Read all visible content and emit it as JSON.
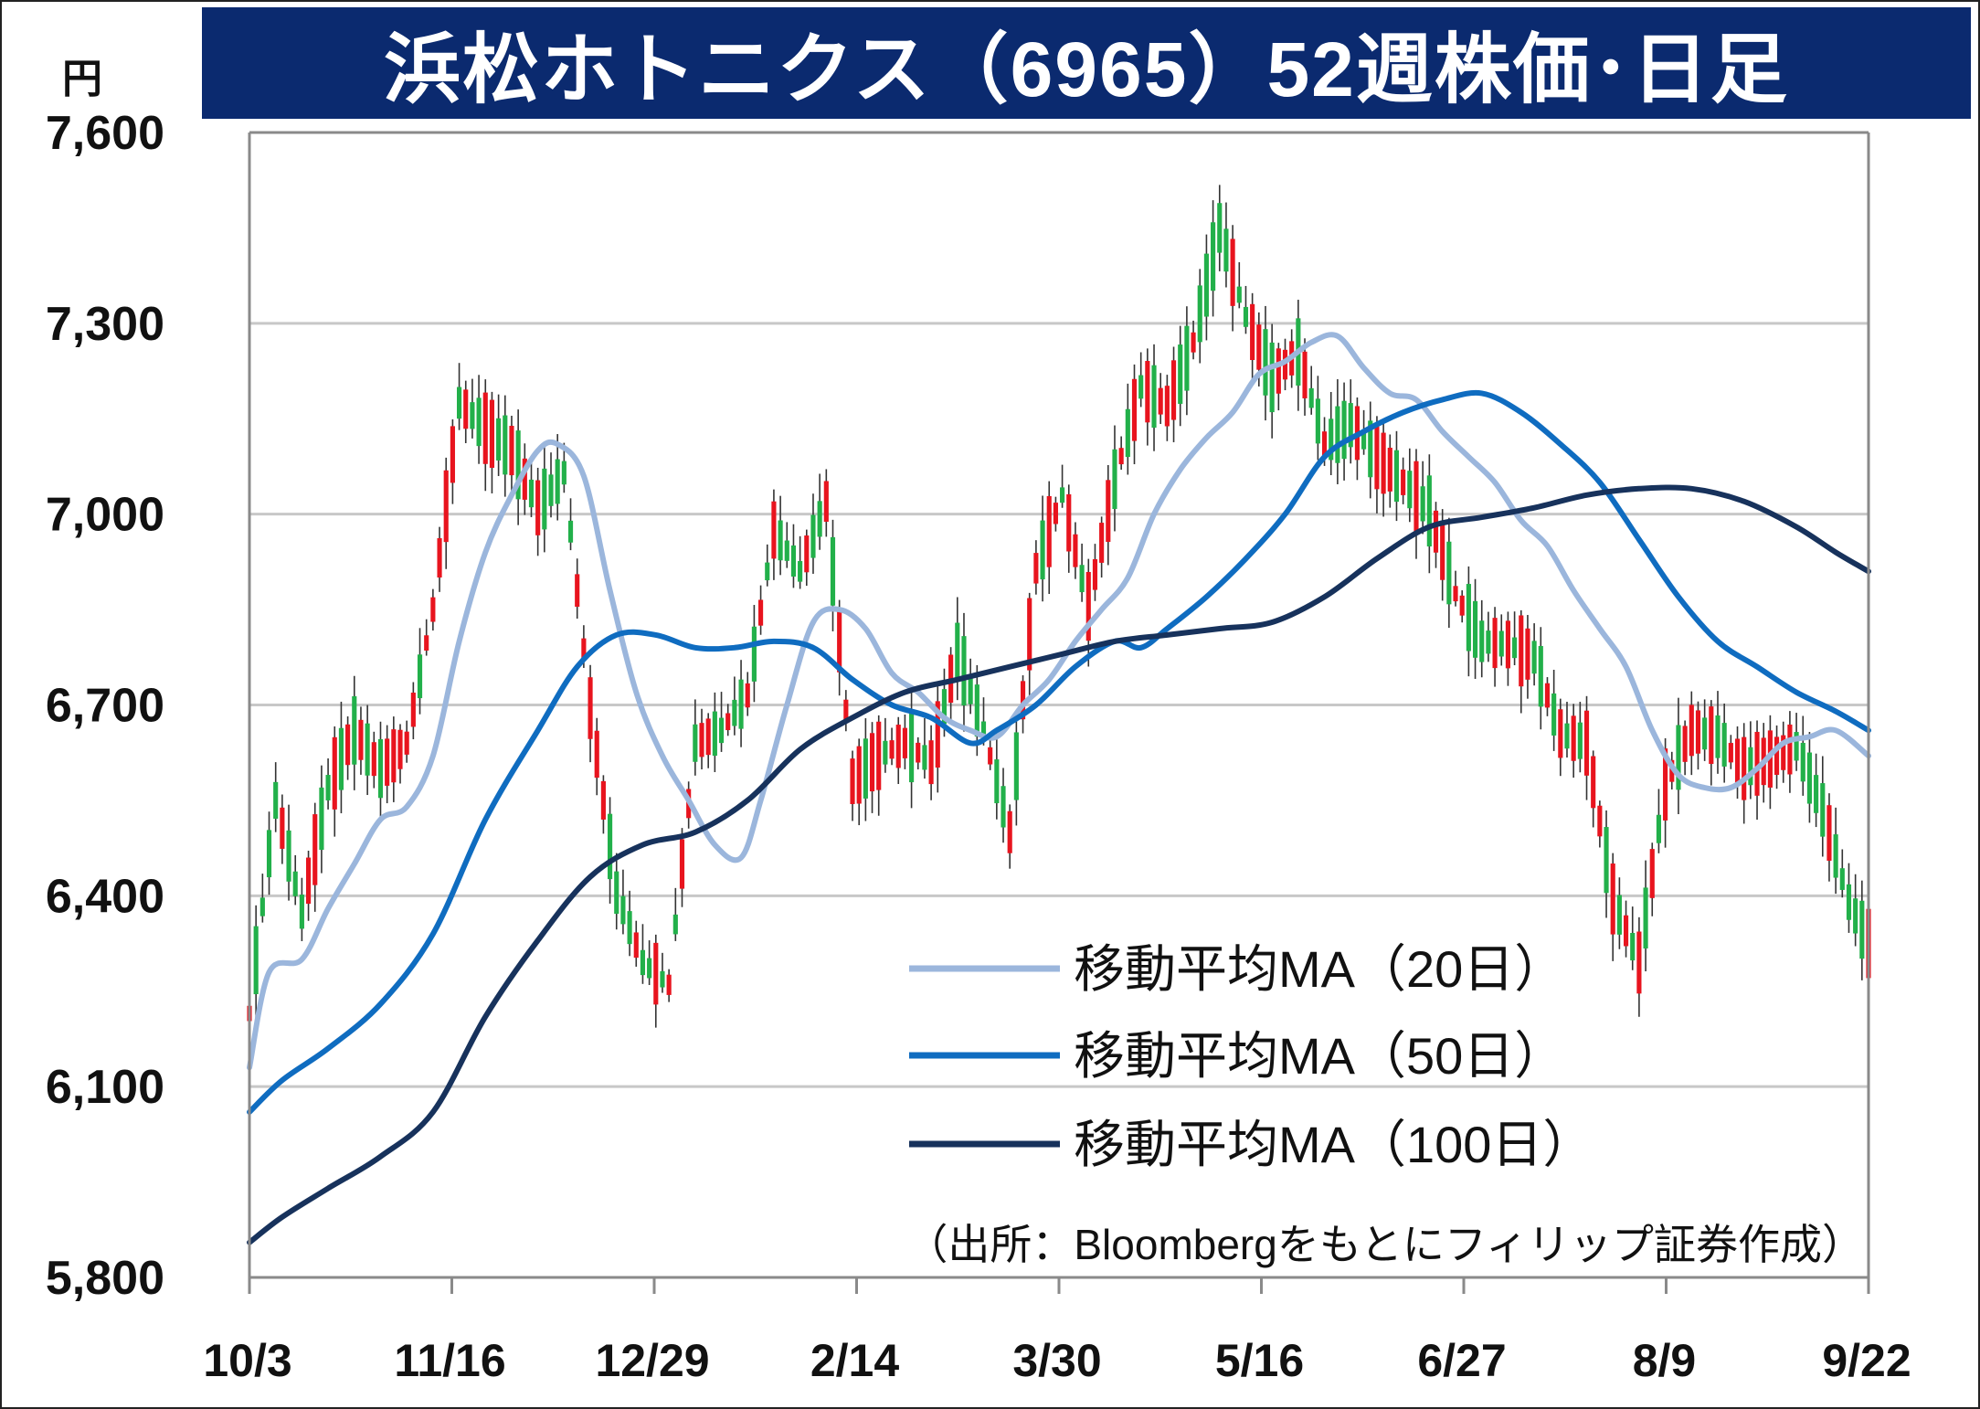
{
  "title": "浜松ホトニクス（6965）52週株価･日足",
  "unit": "円",
  "source": "（出所：Bloombergをもとにフィリップ証券作成）",
  "colors": {
    "title_bg": "#0b2a6f",
    "up": "#22b04a",
    "down": "#e8141e",
    "ma20": "#9bb6dc",
    "ma50": "#0f6cc0",
    "ma100": "#17325c",
    "grid": "#c8c8c8"
  },
  "chart_data": {
    "type": "candlestick",
    "ylim": [
      5800,
      7600
    ],
    "yticks": [
      5800,
      6100,
      6400,
      6700,
      7000,
      7300,
      7600
    ],
    "ytick_labels": [
      "5,800",
      "6,100",
      "6,400",
      "6,700",
      "7,000",
      "7,300",
      "7,600"
    ],
    "xtick_labels": [
      "10/3",
      "11/16",
      "12/29",
      "2/14",
      "3/30",
      "5/16",
      "6/27",
      "8/9",
      "9/22"
    ],
    "n_sessions": 248,
    "candle_anchors": [
      [
        0,
        6150,
        6280
      ],
      [
        4,
        6500,
        6600
      ],
      [
        8,
        6320,
        6430
      ],
      [
        12,
        6620,
        6520
      ],
      [
        16,
        6620,
        6700
      ],
      [
        20,
        6560,
        6640
      ],
      [
        24,
        6700,
        6580
      ],
      [
        28,
        6820,
        6880
      ],
      [
        32,
        7230,
        7120
      ],
      [
        36,
        7170,
        7100
      ],
      [
        40,
        7140,
        7060
      ],
      [
        44,
        7050,
        6970
      ],
      [
        48,
        7030,
        7100
      ],
      [
        52,
        6750,
        6640
      ],
      [
        56,
        6350,
        6460
      ],
      [
        60,
        6260,
        6330
      ],
      [
        64,
        6320,
        6200
      ],
      [
        68,
        6600,
        6680
      ],
      [
        72,
        6680,
        6640
      ],
      [
        76,
        6740,
        6690
      ],
      [
        80,
        6950,
        7000
      ],
      [
        84,
        6940,
        6880
      ],
      [
        88,
        6960,
        7080
      ],
      [
        92,
        6620,
        6540
      ],
      [
        96,
        6580,
        6660
      ],
      [
        100,
        6660,
        6620
      ],
      [
        104,
        6620,
        6600
      ],
      [
        108,
        6750,
        6820
      ],
      [
        112,
        6680,
        6640
      ],
      [
        116,
        6440,
        6560
      ],
      [
        120,
        6880,
        6950
      ],
      [
        124,
        7000,
        7060
      ],
      [
        128,
        6810,
        6900
      ],
      [
        132,
        7000,
        7110
      ],
      [
        136,
        7170,
        7230
      ],
      [
        140,
        7140,
        7200
      ],
      [
        144,
        7240,
        7300
      ],
      [
        148,
        7520,
        7380
      ],
      [
        152,
        7280,
        7340
      ],
      [
        156,
        7180,
        7250
      ],
      [
        160,
        7190,
        7320
      ],
      [
        164,
        7170,
        7050
      ],
      [
        168,
        7080,
        7200
      ],
      [
        172,
        7130,
        7050
      ],
      [
        176,
        7080,
        7020
      ],
      [
        180,
        7050,
        6960
      ],
      [
        184,
        6900,
        6850
      ],
      [
        188,
        6780,
        6820
      ],
      [
        192,
        6770,
        6820
      ],
      [
        196,
        6800,
        6750
      ],
      [
        200,
        6630,
        6680
      ],
      [
        204,
        6720,
        6560
      ],
      [
        208,
        6460,
        6330
      ],
      [
        212,
        6270,
        6320
      ],
      [
        216,
        6500,
        6650
      ],
      [
        220,
        6620,
        6700
      ],
      [
        224,
        6680,
        6620
      ],
      [
        228,
        6620,
        6580
      ],
      [
        232,
        6640,
        6590
      ],
      [
        236,
        6620,
        6650
      ],
      [
        240,
        6570,
        6500
      ],
      [
        244,
        6430,
        6350
      ],
      [
        247,
        6340,
        6310
      ]
    ],
    "series": [
      {
        "name": "移動平均MA（20日）",
        "points": [
          [
            0,
            6130
          ],
          [
            3,
            6280
          ],
          [
            8,
            6300
          ],
          [
            12,
            6380
          ],
          [
            16,
            6450
          ],
          [
            20,
            6520
          ],
          [
            24,
            6540
          ],
          [
            28,
            6620
          ],
          [
            32,
            6800
          ],
          [
            36,
            6940
          ],
          [
            40,
            7030
          ],
          [
            44,
            7100
          ],
          [
            47,
            7110
          ],
          [
            51,
            7060
          ],
          [
            55,
            6880
          ],
          [
            59,
            6720
          ],
          [
            63,
            6620
          ],
          [
            67,
            6550
          ],
          [
            71,
            6480
          ],
          [
            75,
            6460
          ],
          [
            78,
            6550
          ],
          [
            82,
            6700
          ],
          [
            86,
            6830
          ],
          [
            90,
            6850
          ],
          [
            94,
            6820
          ],
          [
            98,
            6750
          ],
          [
            102,
            6720
          ],
          [
            106,
            6680
          ],
          [
            110,
            6660
          ],
          [
            114,
            6650
          ],
          [
            118,
            6700
          ],
          [
            122,
            6740
          ],
          [
            126,
            6800
          ],
          [
            130,
            6850
          ],
          [
            134,
            6900
          ],
          [
            138,
            7000
          ],
          [
            142,
            7070
          ],
          [
            146,
            7120
          ],
          [
            150,
            7160
          ],
          [
            154,
            7220
          ],
          [
            158,
            7240
          ],
          [
            162,
            7270
          ],
          [
            166,
            7280
          ],
          [
            170,
            7230
          ],
          [
            174,
            7190
          ],
          [
            178,
            7180
          ],
          [
            182,
            7130
          ],
          [
            186,
            7090
          ],
          [
            190,
            7050
          ],
          [
            194,
            6990
          ],
          [
            198,
            6950
          ],
          [
            202,
            6880
          ],
          [
            206,
            6820
          ],
          [
            210,
            6760
          ],
          [
            214,
            6660
          ],
          [
            218,
            6590
          ],
          [
            222,
            6570
          ],
          [
            226,
            6570
          ],
          [
            230,
            6600
          ],
          [
            234,
            6640
          ],
          [
            238,
            6650
          ],
          [
            242,
            6660
          ],
          [
            247,
            6620
          ]
        ]
      },
      {
        "name": "移動平均MA（50日）",
        "points": [
          [
            0,
            6060
          ],
          [
            5,
            6110
          ],
          [
            12,
            6160
          ],
          [
            20,
            6230
          ],
          [
            28,
            6340
          ],
          [
            36,
            6520
          ],
          [
            44,
            6660
          ],
          [
            50,
            6760
          ],
          [
            56,
            6810
          ],
          [
            62,
            6810
          ],
          [
            68,
            6790
          ],
          [
            74,
            6790
          ],
          [
            80,
            6800
          ],
          [
            86,
            6790
          ],
          [
            92,
            6740
          ],
          [
            98,
            6700
          ],
          [
            104,
            6680
          ],
          [
            110,
            6640
          ],
          [
            114,
            6660
          ],
          [
            120,
            6700
          ],
          [
            126,
            6760
          ],
          [
            132,
            6800
          ],
          [
            136,
            6790
          ],
          [
            140,
            6820
          ],
          [
            146,
            6870
          ],
          [
            152,
            6930
          ],
          [
            158,
            7000
          ],
          [
            164,
            7090
          ],
          [
            170,
            7130
          ],
          [
            176,
            7160
          ],
          [
            182,
            7180
          ],
          [
            188,
            7190
          ],
          [
            194,
            7160
          ],
          [
            200,
            7110
          ],
          [
            206,
            7050
          ],
          [
            212,
            6960
          ],
          [
            218,
            6870
          ],
          [
            224,
            6800
          ],
          [
            230,
            6760
          ],
          [
            236,
            6720
          ],
          [
            242,
            6690
          ],
          [
            247,
            6660
          ]
        ]
      },
      {
        "name": "移動平均MA（100日）",
        "points": [
          [
            0,
            5855
          ],
          [
            5,
            5895
          ],
          [
            12,
            5940
          ],
          [
            20,
            5990
          ],
          [
            28,
            6060
          ],
          [
            36,
            6210
          ],
          [
            44,
            6330
          ],
          [
            52,
            6430
          ],
          [
            60,
            6480
          ],
          [
            68,
            6500
          ],
          [
            76,
            6550
          ],
          [
            84,
            6630
          ],
          [
            92,
            6680
          ],
          [
            100,
            6720
          ],
          [
            108,
            6740
          ],
          [
            116,
            6760
          ],
          [
            124,
            6780
          ],
          [
            132,
            6800
          ],
          [
            140,
            6810
          ],
          [
            148,
            6820
          ],
          [
            156,
            6830
          ],
          [
            164,
            6870
          ],
          [
            172,
            6930
          ],
          [
            180,
            6980
          ],
          [
            188,
            6995
          ],
          [
            196,
            7010
          ],
          [
            204,
            7030
          ],
          [
            212,
            7040
          ],
          [
            220,
            7040
          ],
          [
            228,
            7020
          ],
          [
            236,
            6980
          ],
          [
            242,
            6940
          ],
          [
            247,
            6910
          ]
        ]
      }
    ],
    "legend_position": "bottom-right",
    "grid": true
  }
}
